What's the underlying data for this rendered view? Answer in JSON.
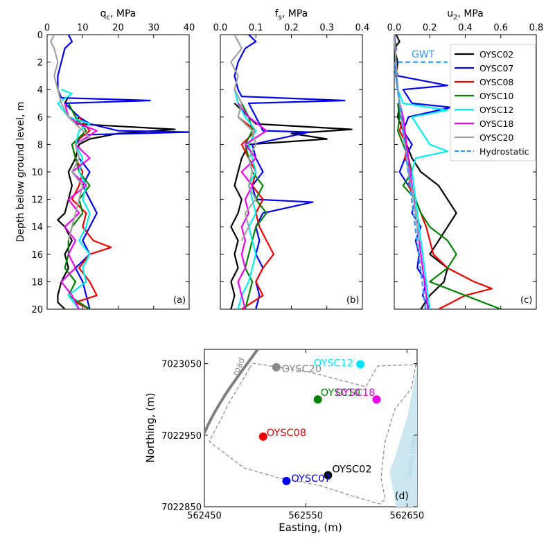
{
  "chart_data": [
    {
      "type": "line",
      "panel_label": "(a)",
      "xlabel": "q",
      "xlabel_sub": "c",
      "xlabel_unit": ", MPa",
      "ylabel": "Depth below ground level, m",
      "xlim": [
        0,
        40
      ],
      "ylim": [
        20,
        0
      ],
      "xticks": [
        0,
        10,
        20,
        30,
        40
      ],
      "yticks": [
        0,
        2,
        4,
        6,
        8,
        10,
        12,
        14,
        16,
        18,
        20
      ],
      "series": [
        {
          "name": "OYSC02",
          "color": "#000000",
          "depth": [
            4.5,
            5,
            5.5,
            6,
            6.5,
            6.9,
            7.2,
            7.6,
            8,
            9,
            10,
            11,
            12,
            13,
            13.5,
            14,
            15,
            16,
            17,
            18,
            19,
            19.5,
            20
          ],
          "values": [
            6,
            5,
            7,
            9,
            8,
            36,
            20,
            12,
            9,
            8,
            6,
            7,
            6,
            5,
            3,
            5,
            7,
            5,
            6,
            4,
            3,
            3,
            5
          ]
        },
        {
          "name": "OYSC07",
          "color": "#0000ee",
          "depth": [
            0,
            0.5,
            1,
            2,
            3,
            4,
            4.6,
            4.8,
            5,
            5.5,
            6,
            6.5,
            7,
            7.1,
            7.3,
            8,
            9,
            10,
            11,
            12,
            13,
            14,
            15,
            16,
            17,
            18,
            19,
            20
          ],
          "values": [
            6,
            7,
            5,
            4,
            3,
            3,
            4,
            29,
            5,
            7,
            9,
            12,
            20,
            40,
            10,
            8,
            9,
            12,
            10,
            12,
            14,
            12,
            10,
            12,
            8,
            10,
            11,
            12
          ]
        },
        {
          "name": "OYSC08",
          "color": "#ee0000",
          "depth": [
            6,
            7,
            8,
            9,
            10,
            11,
            12,
            13,
            14,
            15,
            15.5,
            16,
            17,
            18,
            19,
            19.5,
            20
          ],
          "values": [
            9,
            12,
            7,
            8,
            10,
            9,
            7,
            11,
            10,
            13,
            18,
            12,
            9,
            12,
            14,
            8,
            12
          ]
        },
        {
          "name": "OYSC10",
          "color": "#008000",
          "depth": [
            5,
            6,
            7,
            8,
            9,
            10,
            11,
            12,
            13,
            14,
            15,
            16,
            17,
            18,
            19,
            20
          ],
          "values": [
            6,
            8,
            11,
            7,
            8,
            9,
            12,
            9,
            10,
            7,
            6,
            6,
            5,
            8,
            6,
            12
          ]
        },
        {
          "name": "OYSC12",
          "color": "#00eeee",
          "depth": [
            4,
            4.3,
            5,
            6,
            6.5,
            7,
            8,
            9,
            10,
            11,
            12,
            13,
            14,
            15,
            16,
            17,
            18,
            19,
            20
          ],
          "values": [
            4,
            7,
            3,
            6,
            12,
            9,
            8,
            10,
            9,
            11,
            10,
            12,
            11,
            9,
            12,
            10,
            11,
            6,
            9
          ]
        },
        {
          "name": "OYSC18",
          "color": "#ee00ee",
          "depth": [
            5,
            6,
            6.5,
            7,
            8,
            9,
            10,
            11,
            12,
            13,
            14,
            15,
            16,
            17,
            18,
            19,
            20
          ],
          "values": [
            5,
            6,
            9,
            14,
            8,
            12,
            7,
            11,
            6,
            9,
            5,
            8,
            6,
            8,
            4,
            7,
            9
          ]
        },
        {
          "name": "OYSC20",
          "color": "#a0a0a0",
          "depth": [
            0,
            0.5,
            1,
            2,
            3,
            4,
            5,
            6,
            7,
            7.5,
            8,
            9,
            10,
            11,
            12,
            13,
            14,
            15
          ],
          "values": [
            2,
            1,
            2,
            3,
            2,
            3,
            4,
            6,
            10,
            12,
            8,
            9,
            7,
            10,
            9,
            8,
            7,
            6
          ]
        }
      ]
    },
    {
      "type": "line",
      "panel_label": "(b)",
      "xlabel": "f",
      "xlabel_sub": "s",
      "xlabel_unit": ", MPa",
      "xlim": [
        0,
        0.4
      ],
      "ylim": [
        20,
        0
      ],
      "xticks": [
        0.0,
        0.1,
        0.2,
        0.3,
        0.4
      ],
      "xtick_labels": [
        "0.0",
        "0.1",
        "0.2",
        "0.3",
        "0.4"
      ],
      "yticks": [
        0,
        2,
        4,
        6,
        8,
        10,
        12,
        14,
        16,
        18,
        20
      ],
      "series": [
        {
          "name": "OYSC02",
          "color": "#000000",
          "depth": [
            5,
            6,
            6.5,
            6.9,
            7.2,
            7.6,
            8,
            9,
            10,
            11,
            12,
            13,
            14,
            15,
            16,
            17,
            18,
            19,
            20
          ],
          "values": [
            0.04,
            0.08,
            0.1,
            0.37,
            0.2,
            0.3,
            0.08,
            0.06,
            0.05,
            0.04,
            0.06,
            0.05,
            0.03,
            0.05,
            0.04,
            0.05,
            0.03,
            0.04,
            0.03
          ]
        },
        {
          "name": "OYSC07",
          "color": "#0000ee",
          "depth": [
            0,
            0.5,
            1,
            2,
            3,
            4,
            4.5,
            4.8,
            5,
            6,
            7,
            7.1,
            8,
            9,
            10,
            11,
            12,
            12.2,
            13,
            14,
            15,
            16,
            17,
            18,
            19,
            20
          ],
          "values": [
            0.08,
            0.1,
            0.07,
            0.05,
            0.04,
            0.05,
            0.06,
            0.35,
            0.08,
            0.1,
            0.12,
            0.25,
            0.09,
            0.1,
            0.12,
            0.09,
            0.1,
            0.26,
            0.12,
            0.1,
            0.11,
            0.1,
            0.12,
            0.1,
            0.11,
            0.1
          ]
        },
        {
          "name": "OYSC08",
          "color": "#ee0000",
          "depth": [
            6,
            7,
            8,
            9,
            10,
            11,
            12,
            13,
            14,
            15,
            16,
            17,
            18,
            19,
            20
          ],
          "values": [
            0.05,
            0.1,
            0.06,
            0.08,
            0.1,
            0.09,
            0.12,
            0.1,
            0.11,
            0.13,
            0.15,
            0.12,
            0.1,
            0.12,
            0.06
          ]
        },
        {
          "name": "OYSC10",
          "color": "#008000",
          "depth": [
            5,
            6,
            7,
            8,
            9,
            10,
            11,
            12,
            13,
            14,
            15,
            16,
            17,
            18,
            19,
            20
          ],
          "values": [
            0.06,
            0.08,
            0.09,
            0.07,
            0.08,
            0.09,
            0.12,
            0.1,
            0.13,
            0.1,
            0.09,
            0.08,
            0.07,
            0.09,
            0.08,
            0.07
          ]
        },
        {
          "name": "OYSC12",
          "color": "#00eeee",
          "depth": [
            4,
            5,
            6,
            7,
            8,
            9,
            10,
            11,
            12,
            13,
            14,
            15,
            16,
            17,
            18,
            19,
            20
          ],
          "values": [
            0.04,
            0.05,
            0.07,
            0.1,
            0.08,
            0.09,
            0.1,
            0.08,
            0.09,
            0.1,
            0.08,
            0.09,
            0.1,
            0.09,
            0.08,
            0.06,
            0.05
          ]
        },
        {
          "name": "OYSC18",
          "color": "#ee00ee",
          "depth": [
            5,
            6,
            7,
            8,
            9,
            10,
            11,
            12,
            13,
            14,
            15,
            16,
            17,
            18,
            19,
            20
          ],
          "values": [
            0.05,
            0.08,
            0.13,
            0.07,
            0.1,
            0.06,
            0.09,
            0.07,
            0.08,
            0.06,
            0.07,
            0.06,
            0.07,
            0.05,
            0.06,
            0.07
          ]
        },
        {
          "name": "OYSC20",
          "color": "#a0a0a0",
          "depth": [
            0,
            1,
            2,
            3,
            4,
            5,
            6,
            7,
            8,
            9,
            10,
            11,
            12,
            13,
            14,
            15
          ],
          "values": [
            0.04,
            0.06,
            0.03,
            0.05,
            0.04,
            0.06,
            0.05,
            0.09,
            0.1,
            0.08,
            0.09,
            0.08,
            0.1,
            0.07,
            0.08,
            0.06
          ]
        }
      ]
    },
    {
      "type": "line",
      "panel_label": "(c)",
      "xlabel": "u",
      "xlabel_sub": "2",
      "xlabel_unit": ", MPa",
      "xlim": [
        0,
        0.8
      ],
      "ylim": [
        20,
        0
      ],
      "xticks": [
        0.0,
        0.2,
        0.4,
        0.6,
        0.8
      ],
      "xtick_labels": [
        "0.0",
        "0.2",
        "0.4",
        "0.6",
        "0.8"
      ],
      "yticks": [
        0,
        2,
        4,
        6,
        8,
        10,
        12,
        14,
        16,
        18,
        20
      ],
      "annotation": "GWT",
      "gwt_depth": 2,
      "series": [
        {
          "name": "OYSC02",
          "color": "#000000",
          "depth": [
            0,
            0.5,
            1,
            2,
            3,
            4,
            5,
            6,
            7,
            8,
            9,
            10,
            11,
            12,
            13,
            14,
            15,
            16,
            17,
            18,
            19,
            20
          ],
          "values": [
            0.01,
            0.03,
            0.0,
            0.02,
            0.01,
            0.02,
            0.03,
            0.02,
            0.05,
            0.07,
            0.1,
            0.15,
            0.25,
            0.3,
            0.35,
            0.3,
            0.25,
            0.2,
            0.3,
            0.28,
            0.2,
            0.15
          ]
        },
        {
          "name": "OYSC07",
          "color": "#0000ee",
          "depth": [
            0,
            1,
            2,
            3,
            3.7,
            4,
            5,
            5.3,
            6,
            7,
            8,
            9,
            10,
            11,
            12,
            13,
            14,
            15,
            16,
            17,
            18,
            19,
            20
          ],
          "values": [
            0.0,
            0.01,
            0.0,
            0.02,
            0.3,
            0.05,
            0.1,
            0.32,
            0.08,
            0.05,
            0.1,
            0.06,
            0.03,
            0.08,
            0.12,
            0.1,
            0.15,
            0.12,
            0.14,
            0.13,
            0.18,
            0.16,
            0.2
          ]
        },
        {
          "name": "OYSC08",
          "color": "#ee0000",
          "depth": [
            6,
            7,
            8,
            9,
            10,
            11,
            12,
            13,
            14,
            15,
            16,
            17,
            18,
            18.5,
            19,
            20
          ],
          "values": [
            0.05,
            0.03,
            0.07,
            0.06,
            0.1,
            0.08,
            0.12,
            0.15,
            0.18,
            0.2,
            0.22,
            0.3,
            0.45,
            0.55,
            0.4,
            0.25
          ]
        },
        {
          "name": "OYSC10",
          "color": "#008000",
          "depth": [
            5,
            6,
            7,
            8,
            9,
            10,
            11,
            12,
            13,
            14,
            15,
            16,
            17,
            18,
            19,
            20
          ],
          "values": [
            0.02,
            0.03,
            0.02,
            0.05,
            0.08,
            0.1,
            0.05,
            0.12,
            0.15,
            0.2,
            0.3,
            0.35,
            0.3,
            0.2,
            0.4,
            0.6
          ]
        },
        {
          "name": "OYSC12",
          "color": "#00eeee",
          "depth": [
            4,
            5,
            5.5,
            6,
            7,
            8,
            8.5,
            9,
            10,
            11,
            12,
            13,
            14,
            15,
            16,
            17,
            18,
            19,
            20
          ],
          "values": [
            0.02,
            0.05,
            0.3,
            0.1,
            0.15,
            0.2,
            0.3,
            0.12,
            0.1,
            0.11,
            0.12,
            0.13,
            0.14,
            0.15,
            0.16,
            0.17,
            0.18,
            0.19,
            0.2
          ]
        },
        {
          "name": "OYSC18",
          "color": "#ee00ee",
          "depth": [
            5,
            6,
            7,
            8,
            9,
            10,
            11,
            12,
            13,
            14,
            15,
            16,
            17,
            18,
            19,
            20
          ],
          "values": [
            0.03,
            0.05,
            0.06,
            0.07,
            0.08,
            0.09,
            0.1,
            0.11,
            0.12,
            0.13,
            0.14,
            0.15,
            0.16,
            0.17,
            0.18,
            0.19
          ]
        },
        {
          "name": "OYSC20",
          "color": "#a0a0a0",
          "depth": [
            0,
            2,
            4,
            6,
            8,
            10,
            12,
            14,
            15
          ],
          "values": [
            0.0,
            0.01,
            0.02,
            0.04,
            0.06,
            0.08,
            0.11,
            0.13,
            0.14
          ]
        },
        {
          "name": "Hydrostatic",
          "color": "#3399ff",
          "dashed": true,
          "depth": [
            2,
            20
          ],
          "values": [
            0.0,
            0.177
          ]
        }
      ]
    },
    {
      "type": "scatter",
      "panel_label": "(d)",
      "xlabel": "Easting, (m)",
      "ylabel": "Northing, (m)",
      "xlim": [
        562450,
        562660
      ],
      "ylim": [
        7022850,
        7023070
      ],
      "xticks": [
        562450,
        562550,
        562650
      ],
      "yticks": [
        7022850,
        7022950,
        7023050
      ],
      "annotations": {
        "road": "road",
        "river": "Gaula river"
      },
      "points": [
        {
          "name": "OYSC20",
          "color": "#888888",
          "x": 562521,
          "y": 7023045
        },
        {
          "name": "OYSC12",
          "color": "#00e5ff",
          "x": 562604,
          "y": 7023049
        },
        {
          "name": "OYSC10",
          "color": "#008000",
          "x": 562562,
          "y": 7023000
        },
        {
          "name": "OYSC18",
          "color": "#ee00ee",
          "x": 562620,
          "y": 7023000
        },
        {
          "name": "OYSC08",
          "color": "#ee0000",
          "x": 562508,
          "y": 7022948
        },
        {
          "name": "OYSC02",
          "color": "#000000",
          "x": 562572,
          "y": 7022894
        },
        {
          "name": "OYSC07",
          "color": "#0000ee",
          "x": 562531,
          "y": 7022886
        }
      ]
    }
  ],
  "legend": [
    {
      "label": "OYSC02",
      "color": "#000000"
    },
    {
      "label": "OYSC07",
      "color": "#0000ee"
    },
    {
      "label": "OYSC08",
      "color": "#ee0000"
    },
    {
      "label": "OYSC10",
      "color": "#008000"
    },
    {
      "label": "OYSC12",
      "color": "#00eeee"
    },
    {
      "label": "OYSC18",
      "color": "#ee00ee"
    },
    {
      "label": "OYSC20",
      "color": "#a0a0a0"
    },
    {
      "label": "Hydrostatic",
      "color": "#3399ff",
      "dashed": true
    }
  ]
}
